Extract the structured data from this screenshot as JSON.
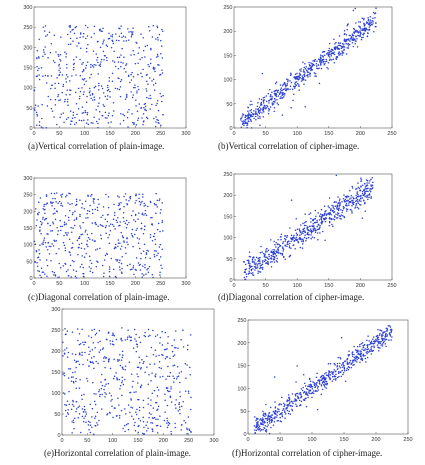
{
  "chart_data": [
    {
      "id": "a",
      "type": "scatter",
      "caption": "(a)Vertical correlation of plain-image.",
      "xlim": [
        0,
        300
      ],
      "ylim": [
        0,
        300
      ],
      "xticks": [
        0,
        50,
        100,
        150,
        200,
        250,
        300
      ],
      "yticks": [
        0,
        50,
        100,
        150,
        200,
        250,
        300
      ],
      "pattern": "uniform",
      "range": [
        0,
        255
      ],
      "n": 520,
      "seed": 11
    },
    {
      "id": "b",
      "type": "scatter",
      "caption": "(b)Vertical correlation of cipher-image.",
      "xlim": [
        0,
        250
      ],
      "ylim": [
        0,
        250
      ],
      "xticks": [
        0,
        50,
        100,
        150,
        200,
        250
      ],
      "yticks": [
        0,
        50,
        100,
        150,
        200,
        250
      ],
      "pattern": "diagonal",
      "range": [
        10,
        225
      ],
      "spread": 10,
      "outliers": 30,
      "n": 650,
      "seed": 23
    },
    {
      "id": "c",
      "type": "scatter",
      "caption": "(c)Diagonal correlation of plain-image.",
      "xlim": [
        0,
        300
      ],
      "ylim": [
        0,
        300
      ],
      "xticks": [
        0,
        50,
        100,
        150,
        200,
        250,
        300
      ],
      "yticks": [
        0,
        50,
        100,
        150,
        200,
        250,
        300
      ],
      "pattern": "uniform",
      "range": [
        0,
        255
      ],
      "n": 520,
      "seed": 37
    },
    {
      "id": "d",
      "type": "scatter",
      "caption": "(d)Diagonal correlation of cipher-image.",
      "xlim": [
        0,
        250
      ],
      "ylim": [
        0,
        250
      ],
      "xticks": [
        0,
        50,
        100,
        150,
        200,
        250
      ],
      "yticks": [
        0,
        50,
        100,
        150,
        200,
        250
      ],
      "pattern": "diagonal",
      "range": [
        15,
        220
      ],
      "spread": 14,
      "outliers": 40,
      "n": 650,
      "seed": 41
    },
    {
      "id": "e",
      "type": "scatter",
      "caption": "(e)Horizontal correlation of plain-image.",
      "xlim": [
        0,
        300
      ],
      "ylim": [
        0,
        300
      ],
      "xticks": [
        0,
        50,
        100,
        150,
        200,
        250,
        300
      ],
      "yticks": [
        0,
        50,
        100,
        150,
        200,
        250,
        300
      ],
      "pattern": "uniform",
      "range": [
        0,
        255
      ],
      "n": 520,
      "seed": 53
    },
    {
      "id": "f",
      "type": "scatter",
      "caption": "(f)Horizontal correlation of cipher-image.",
      "xlim": [
        0,
        250
      ],
      "ylim": [
        0,
        250
      ],
      "xticks": [
        0,
        50,
        100,
        150,
        200,
        250
      ],
      "yticks": [
        0,
        50,
        100,
        150,
        200,
        250
      ],
      "pattern": "diagonal",
      "range": [
        10,
        225
      ],
      "spread": 10,
      "outliers": 35,
      "n": 650,
      "seed": 67
    }
  ],
  "colors": {
    "points": "#2b3fd6",
    "axis": "#555555"
  }
}
